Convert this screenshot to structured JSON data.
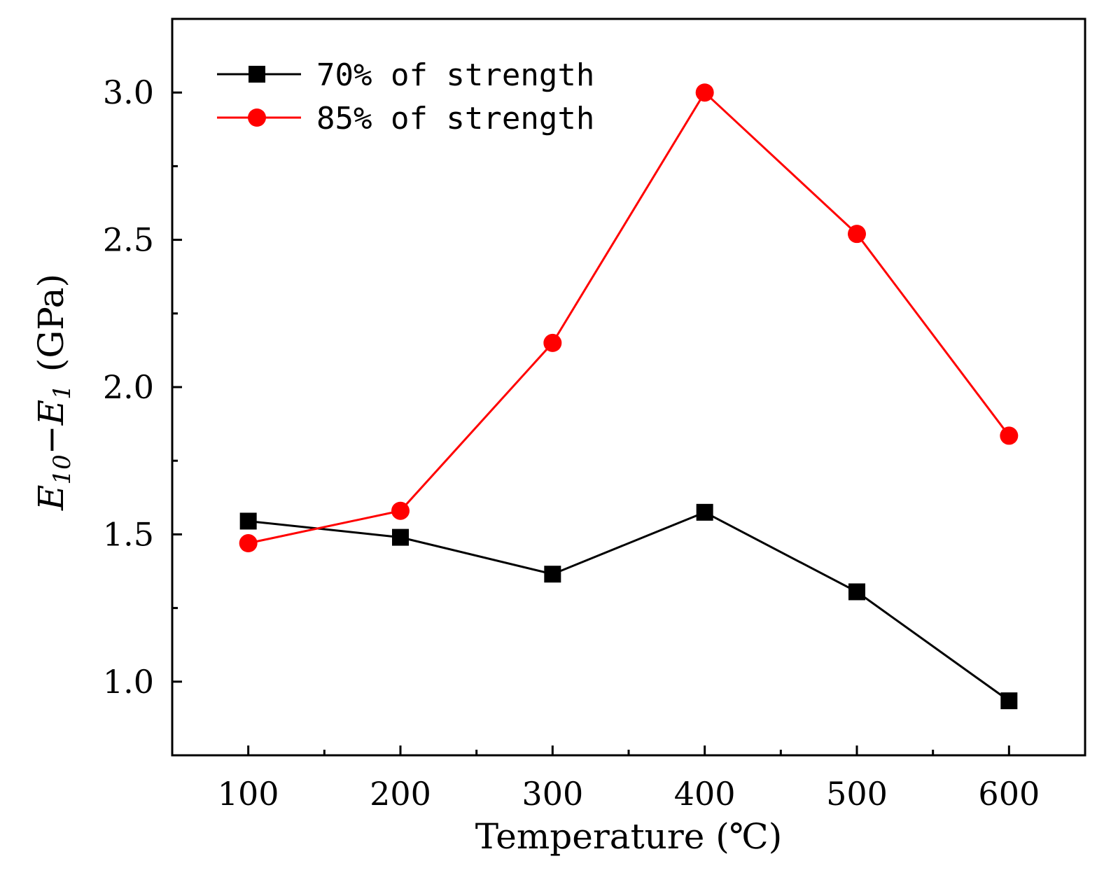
{
  "chart_data": {
    "type": "line",
    "title": "",
    "xlabel": "Temperature (℃)",
    "ylabel": {
      "main_1": "E",
      "sub_1": "10",
      "dash": "−",
      "main_2": "E",
      "sub_2": "1",
      "unit": "(GPa)"
    },
    "x": [
      100,
      200,
      300,
      400,
      500,
      600
    ],
    "x_tick_labels": [
      "100",
      "200",
      "300",
      "400",
      "500",
      "600"
    ],
    "y_tick_labels": [
      "1.0",
      "1.5",
      "2.0",
      "2.5",
      "3.0"
    ],
    "y_ticks": [
      1.0,
      1.5,
      2.0,
      2.5,
      3.0
    ],
    "xlim": [
      50,
      650
    ],
    "ylim": [
      0.75,
      3.25
    ],
    "grid": false,
    "legend_position": "top-left",
    "series": [
      {
        "name": "70% of strength",
        "color": "#000000",
        "marker": "square",
        "values": [
          1.545,
          1.49,
          1.365,
          1.575,
          1.305,
          0.935
        ]
      },
      {
        "name": "85% of strength",
        "color": "#ff0000",
        "marker": "circle",
        "values": [
          1.47,
          1.58,
          2.15,
          3.0,
          2.52,
          1.835
        ]
      }
    ]
  }
}
